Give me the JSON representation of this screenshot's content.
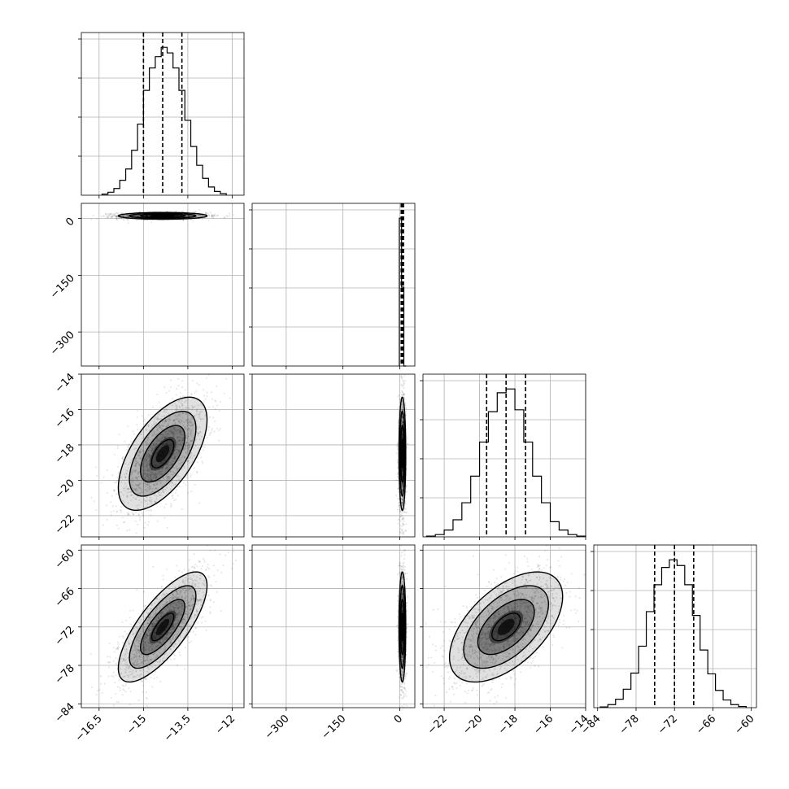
{
  "chart_data": {
    "type": "corner",
    "grid": true,
    "parameters": [
      {
        "ticks": [
          -16.5,
          -15.0,
          -13.5,
          -12.0
        ],
        "range": [
          -17.1,
          -11.6
        ],
        "quantiles": [
          -15.0,
          -14.35,
          -13.7
        ]
      },
      {
        "ticks": [
          -300,
          -150,
          0
        ],
        "range": [
          -390,
          40
        ],
        "quantiles": [
          4,
          7,
          10
        ]
      },
      {
        "ticks": [
          -22,
          -20,
          -18,
          -16,
          -14
        ],
        "range": [
          -23.2,
          -14.0
        ],
        "quantiles": [
          -19.6,
          -18.5,
          -17.4
        ]
      },
      {
        "ticks": [
          -84,
          -78,
          -72,
          -66,
          -60
        ],
        "range": [
          -84.6,
          -59.2
        ],
        "quantiles": [
          -75.1,
          -72.0,
          -69.0
        ]
      }
    ],
    "histograms": [
      {
        "param": 0,
        "edges": [
          -16.4,
          -16.2,
          -16.0,
          -15.8,
          -15.6,
          -15.4,
          -15.2,
          -15.0,
          -14.8,
          -14.6,
          -14.4,
          -14.2,
          -14.0,
          -13.8,
          -13.6,
          -13.4,
          -13.2,
          -13.0,
          -12.8,
          -12.6,
          -12.4,
          -12.2
        ],
        "counts": [
          3,
          8,
          18,
          40,
          70,
          120,
          190,
          280,
          340,
          370,
          395,
          380,
          340,
          280,
          200,
          130,
          80,
          45,
          22,
          10,
          4
        ]
      },
      {
        "param": 1,
        "edges": [
          -1,
          5,
          11,
          17
        ],
        "counts": [
          300,
          160,
          0
        ]
      },
      {
        "param": 2,
        "edges": [
          -23.0,
          -22.5,
          -22.0,
          -21.5,
          -21.0,
          -20.5,
          -20.0,
          -19.5,
          -19.0,
          -18.5,
          -18.0,
          -17.5,
          -17.0,
          -16.5,
          -16.0,
          -15.5,
          -15.0,
          -14.5,
          -14.0
        ],
        "counts": [
          2,
          6,
          18,
          45,
          90,
          160,
          250,
          330,
          380,
          390,
          335,
          250,
          160,
          90,
          40,
          18,
          6,
          2
        ]
      },
      {
        "param": 3,
        "edges": [
          -83.6,
          -82.4,
          -81.2,
          -80.0,
          -78.8,
          -77.6,
          -76.4,
          -75.2,
          -74.0,
          -72.8,
          -71.6,
          -70.4,
          -69.2,
          -68.0,
          -66.8,
          -65.6,
          -64.4,
          -63.2,
          -62.0,
          -60.8
        ],
        "counts": [
          2,
          8,
          22,
          48,
          90,
          160,
          250,
          320,
          365,
          385,
          370,
          320,
          240,
          150,
          88,
          45,
          20,
          8,
          3
        ]
      }
    ],
    "pairs": [
      {
        "x": 0,
        "y": 1,
        "mean": [
          -14.35,
          7
        ],
        "sd": [
          0.75,
          4.5
        ],
        "rho": 0.0
      },
      {
        "x": 0,
        "y": 2,
        "mean": [
          -14.35,
          -18.5
        ],
        "sd": [
          0.75,
          1.6
        ],
        "rho": 0.6
      },
      {
        "x": 1,
        "y": 2,
        "mean": [
          7,
          -18.5
        ],
        "sd": [
          4.5,
          1.6
        ],
        "rho": 0.0
      },
      {
        "x": 0,
        "y": 3,
        "mean": [
          -14.35,
          -72.0
        ],
        "sd": [
          0.75,
          4.3
        ],
        "rho": 0.75
      },
      {
        "x": 1,
        "y": 3,
        "mean": [
          7,
          -72.0
        ],
        "sd": [
          4.5,
          4.3
        ],
        "rho": 0.0
      },
      {
        "x": 2,
        "y": 3,
        "mean": [
          -18.5,
          -72.0
        ],
        "sd": [
          1.6,
          4.3
        ],
        "rho": 0.55
      }
    ]
  }
}
